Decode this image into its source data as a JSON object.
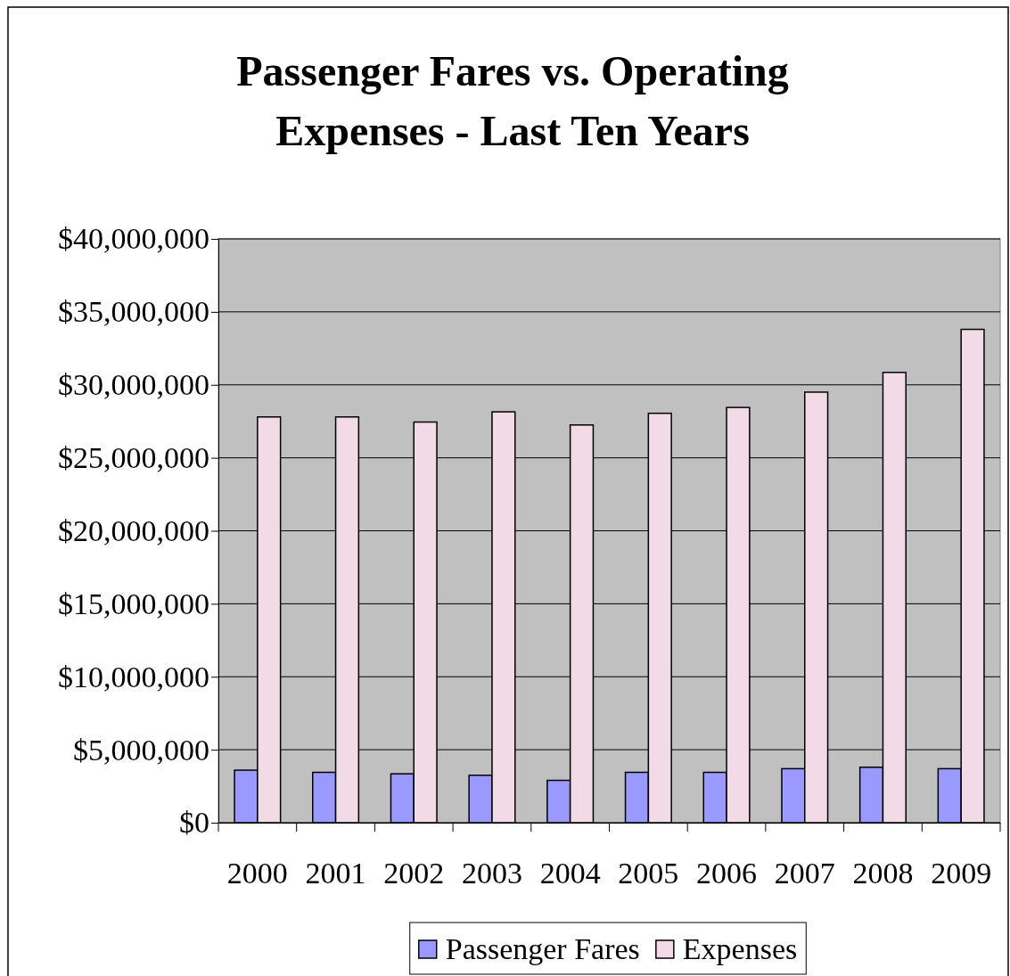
{
  "chart_data": {
    "type": "bar",
    "title": "Passenger Fares vs. Operating Expenses - Last Ten Years",
    "categories": [
      "2000",
      "2001",
      "2002",
      "2003",
      "2004",
      "2005",
      "2006",
      "2007",
      "2008",
      "2009"
    ],
    "series": [
      {
        "name": "Passenger Fares",
        "color": "#9999ff",
        "values": [
          3600000,
          3450000,
          3350000,
          3250000,
          2900000,
          3450000,
          3450000,
          3700000,
          3800000,
          3700000
        ]
      },
      {
        "name": "Expenses",
        "color": "#f2dbe6",
        "values": [
          27800000,
          27800000,
          27450000,
          28150000,
          27250000,
          28050000,
          28450000,
          29500000,
          30850000,
          33800000
        ]
      }
    ],
    "ylim": [
      0,
      40000000
    ],
    "yticks": [
      {
        "value": 0,
        "label": "$0"
      },
      {
        "value": 5000000,
        "label": "$5,000,000"
      },
      {
        "value": 10000000,
        "label": "$10,000,000"
      },
      {
        "value": 15000000,
        "label": "$15,000,000"
      },
      {
        "value": 20000000,
        "label": "$20,000,000"
      },
      {
        "value": 25000000,
        "label": "$25,000,000"
      },
      {
        "value": 30000000,
        "label": "$30,000,000"
      },
      {
        "value": 35000000,
        "label": "$35,000,000"
      },
      {
        "value": 40000000,
        "label": "$40,000,000"
      }
    ],
    "grid": "y",
    "legend": "bottom"
  }
}
